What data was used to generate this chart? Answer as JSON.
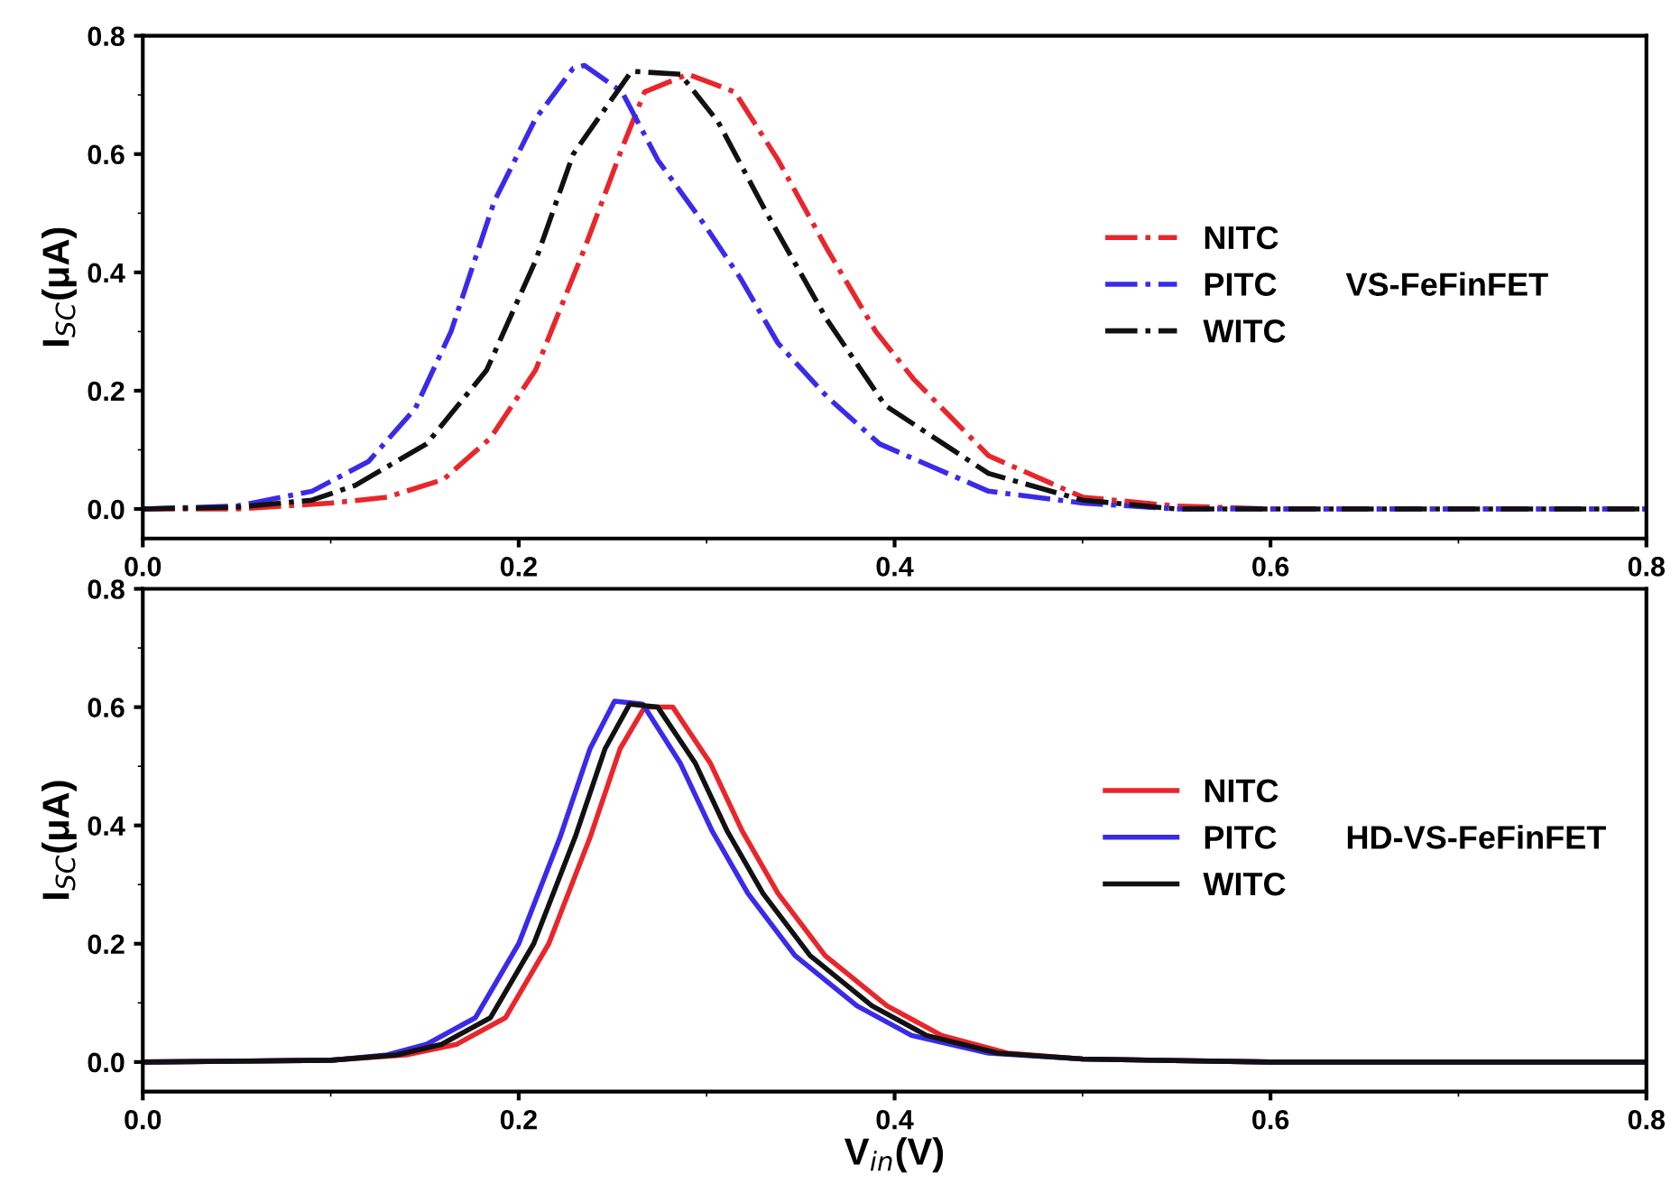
{
  "chart_data": [
    {
      "type": "line",
      "ylabel": "I$_{SC}$(μA)",
      "line_style": "dashdot",
      "legend": "right",
      "annotations": [
        "VS-FeFinFET"
      ],
      "xlim": [
        0,
        0.8
      ],
      "xticks": [
        {
          "value": 0,
          "label": "0.0"
        },
        0.2,
        0.4,
        0.6,
        0.8
      ],
      "ylim": [
        -0.05,
        0.8
      ],
      "yticks": [
        {
          "value": 0,
          "label": "0.0"
        },
        0.2,
        0.4,
        0.6,
        0.8
      ],
      "series": [
        {
          "name": "NITC",
          "color": "#e8262b",
          "x": [
            0,
            0.05,
            0.1,
            0.13,
            0.16,
            0.185,
            0.209,
            0.235,
            0.255,
            0.267,
            0.29,
            0.315,
            0.338,
            0.364,
            0.39,
            0.41,
            0.45,
            0.5,
            0.55,
            0.6,
            0.8
          ],
          "values": [
            0,
            0,
            0.01,
            0.02,
            0.05,
            0.12,
            0.235,
            0.44,
            0.61,
            0.705,
            0.735,
            0.705,
            0.59,
            0.44,
            0.3,
            0.22,
            0.09,
            0.02,
            0.005,
            0,
            0
          ]
        },
        {
          "name": "PITC",
          "color": "#3a2bea",
          "x": [
            0,
            0.05,
            0.09,
            0.12,
            0.145,
            0.164,
            0.187,
            0.209,
            0.229,
            0.235,
            0.255,
            0.274,
            0.299,
            0.318,
            0.338,
            0.364,
            0.392,
            0.45,
            0.5,
            0.55,
            0.8
          ],
          "values": [
            0,
            0.005,
            0.03,
            0.08,
            0.17,
            0.3,
            0.52,
            0.66,
            0.745,
            0.75,
            0.705,
            0.59,
            0.48,
            0.39,
            0.28,
            0.19,
            0.11,
            0.03,
            0.01,
            0,
            0
          ]
        },
        {
          "name": "WITC",
          "color": "#111111",
          "x": [
            0,
            0.05,
            0.09,
            0.113,
            0.151,
            0.183,
            0.209,
            0.229,
            0.26,
            0.286,
            0.306,
            0.332,
            0.364,
            0.395,
            0.45,
            0.5,
            0.55,
            0.8
          ],
          "values": [
            0,
            0.003,
            0.015,
            0.04,
            0.11,
            0.235,
            0.42,
            0.6,
            0.74,
            0.735,
            0.655,
            0.5,
            0.32,
            0.175,
            0.06,
            0.015,
            0,
            0
          ]
        }
      ]
    },
    {
      "type": "line",
      "ylabel": "I$_{SC}$(μA)",
      "xlabel": "V$_{in}$(V)",
      "line_style": "solid",
      "legend": "right",
      "annotations": [
        "HD-VS-FeFinFET"
      ],
      "xlim": [
        0,
        0.8
      ],
      "xticks": [
        {
          "value": 0,
          "label": "0.0"
        },
        0.2,
        0.4,
        0.6,
        0.8
      ],
      "ylim": [
        -0.05,
        0.8
      ],
      "yticks": [
        {
          "value": 0,
          "label": "0.0"
        },
        0.2,
        0.4,
        0.6,
        0.8
      ],
      "series": [
        {
          "name": "NITC",
          "color": "#e8262b",
          "x": [
            0,
            0.1,
            0.14,
            0.167,
            0.193,
            0.216,
            0.238,
            0.254,
            0.267,
            0.282,
            0.302,
            0.319,
            0.338,
            0.363,
            0.396,
            0.425,
            0.46,
            0.5,
            0.6,
            0.8
          ],
          "values": [
            0,
            0.003,
            0.012,
            0.03,
            0.075,
            0.2,
            0.38,
            0.53,
            0.6,
            0.6,
            0.505,
            0.39,
            0.285,
            0.18,
            0.095,
            0.045,
            0.015,
            0.005,
            0,
            0
          ]
        },
        {
          "name": "PITC",
          "color": "#3a2bea",
          "x": [
            0,
            0.1,
            0.13,
            0.151,
            0.177,
            0.2,
            0.222,
            0.238,
            0.251,
            0.266,
            0.286,
            0.303,
            0.322,
            0.347,
            0.38,
            0.409,
            0.45,
            0.5,
            0.6,
            0.8
          ],
          "values": [
            0,
            0.003,
            0.012,
            0.03,
            0.075,
            0.2,
            0.38,
            0.53,
            0.61,
            0.605,
            0.505,
            0.39,
            0.285,
            0.18,
            0.095,
            0.045,
            0.015,
            0.005,
            0,
            0
          ]
        },
        {
          "name": "WITC",
          "color": "#111111",
          "x": [
            0,
            0.1,
            0.135,
            0.159,
            0.185,
            0.208,
            0.23,
            0.246,
            0.259,
            0.274,
            0.294,
            0.311,
            0.33,
            0.355,
            0.388,
            0.417,
            0.455,
            0.5,
            0.6,
            0.8
          ],
          "values": [
            0,
            0.003,
            0.012,
            0.03,
            0.075,
            0.2,
            0.38,
            0.53,
            0.605,
            0.6,
            0.505,
            0.39,
            0.285,
            0.18,
            0.095,
            0.045,
            0.015,
            0.005,
            0,
            0
          ]
        }
      ]
    }
  ]
}
